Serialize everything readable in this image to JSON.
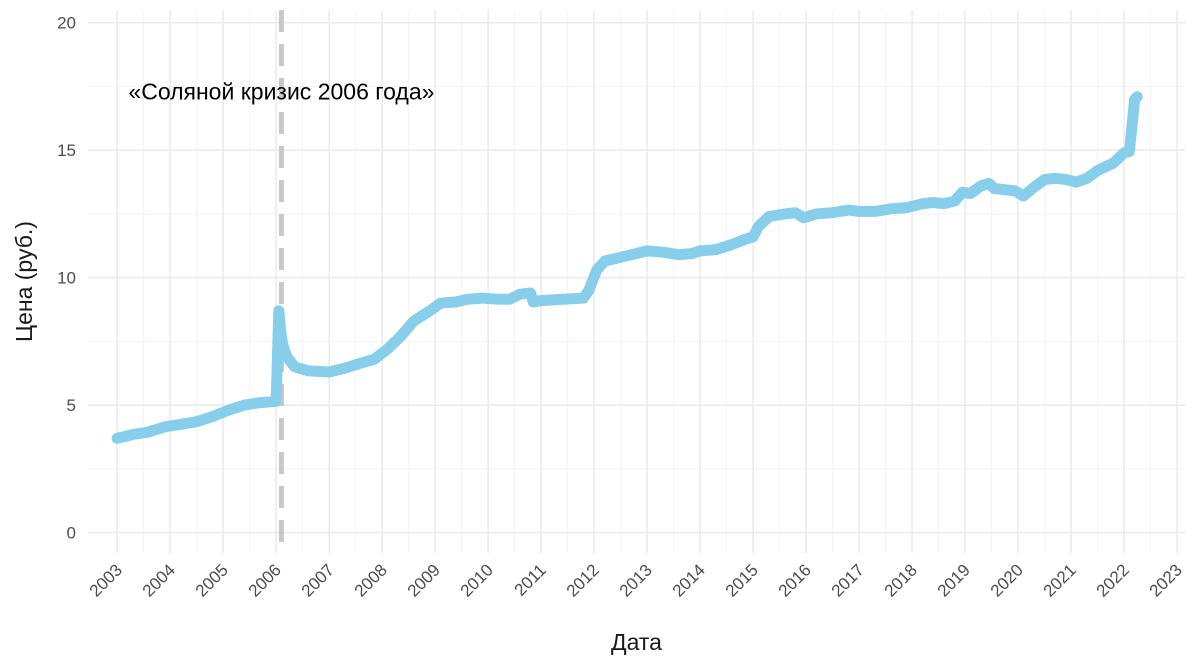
{
  "chart_data": {
    "type": "line",
    "title": "",
    "xlabel": "Дата",
    "ylabel": "Цена (руб.)",
    "xlim": [
      2002.45,
      2023.15
    ],
    "ylim": [
      -0.8,
      20.5
    ],
    "grid": true,
    "x_ticks": [
      "2003",
      "2004",
      "2005",
      "2006",
      "2007",
      "2008",
      "2009",
      "2010",
      "2011",
      "2012",
      "2013",
      "2014",
      "2015",
      "2016",
      "2017",
      "2018",
      "2019",
      "2020",
      "2021",
      "2022",
      "2023"
    ],
    "y_ticks": [
      "0",
      "5",
      "10",
      "15",
      "20"
    ],
    "reference_line": {
      "x": 2006.1,
      "style": "dashed"
    },
    "annotation": {
      "text": "«Соляной кризис 2006 года»",
      "x": 2006.1,
      "y": 17.3
    },
    "series": [
      {
        "color": "#87CEEB",
        "x": [
          2003.0,
          2003.3,
          2003.6,
          2003.9,
          2004.2,
          2004.5,
          2004.8,
          2005.1,
          2005.4,
          2005.7,
          2006.0,
          2006.05,
          2006.08,
          2006.12,
          2006.2,
          2006.35,
          2006.6,
          2007.0,
          2007.3,
          2007.6,
          2007.85,
          2008.1,
          2008.35,
          2008.6,
          2008.9,
          2009.1,
          2009.4,
          2009.6,
          2009.9,
          2010.2,
          2010.4,
          2010.6,
          2010.8,
          2010.85,
          2011.0,
          2011.4,
          2011.8,
          2011.9,
          2012.05,
          2012.2,
          2012.5,
          2012.8,
          2013.0,
          2013.3,
          2013.6,
          2013.85,
          2014.0,
          2014.3,
          2014.6,
          2014.85,
          2015.0,
          2015.1,
          2015.3,
          2015.6,
          2015.8,
          2015.95,
          2016.2,
          2016.5,
          2016.8,
          2017.0,
          2017.3,
          2017.6,
          2017.9,
          2018.2,
          2018.4,
          2018.6,
          2018.8,
          2018.95,
          2019.1,
          2019.3,
          2019.45,
          2019.55,
          2019.75,
          2019.95,
          2020.1,
          2020.3,
          2020.5,
          2020.7,
          2020.9,
          2021.1,
          2021.3,
          2021.5,
          2021.65,
          2021.8,
          2021.9,
          2022.0,
          2022.1,
          2022.2,
          2022.25
        ],
        "y": [
          3.7,
          3.85,
          3.95,
          4.15,
          4.25,
          4.35,
          4.55,
          4.8,
          5.0,
          5.1,
          5.15,
          8.7,
          8.0,
          7.4,
          6.9,
          6.5,
          6.35,
          6.3,
          6.45,
          6.65,
          6.8,
          7.2,
          7.7,
          8.3,
          8.7,
          9.0,
          9.05,
          9.15,
          9.2,
          9.15,
          9.15,
          9.35,
          9.4,
          9.05,
          9.1,
          9.15,
          9.2,
          9.5,
          10.3,
          10.65,
          10.8,
          10.95,
          11.05,
          11.0,
          10.9,
          10.95,
          11.05,
          11.1,
          11.3,
          11.5,
          11.6,
          12.0,
          12.4,
          12.5,
          12.55,
          12.35,
          12.5,
          12.55,
          12.65,
          12.6,
          12.6,
          12.7,
          12.75,
          12.9,
          12.95,
          12.9,
          13.0,
          13.35,
          13.3,
          13.6,
          13.7,
          13.5,
          13.45,
          13.4,
          13.2,
          13.55,
          13.85,
          13.9,
          13.85,
          13.75,
          13.9,
          14.2,
          14.35,
          14.5,
          14.7,
          14.9,
          14.95,
          17.0,
          17.1
        ]
      }
    ]
  }
}
